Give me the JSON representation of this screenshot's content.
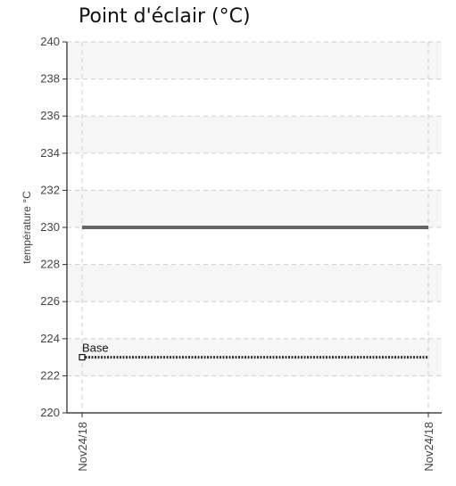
{
  "chart_data": {
    "type": "line",
    "title": "Point d'éclair (°C)",
    "xlabel": "",
    "ylabel": "température °C",
    "categories": [
      "Nov24/18",
      "Nov24/18"
    ],
    "ylim": [
      220,
      240
    ],
    "yticks": [
      220,
      222,
      224,
      226,
      228,
      230,
      232,
      234,
      236,
      238,
      240
    ],
    "grid": true,
    "series": [
      {
        "values": [
          230,
          230
        ],
        "color": "#666666",
        "style": "solid"
      },
      {
        "name": "Base",
        "values": [
          223,
          223
        ],
        "color": "#333333",
        "style": "dotted",
        "marker": "square"
      }
    ]
  }
}
